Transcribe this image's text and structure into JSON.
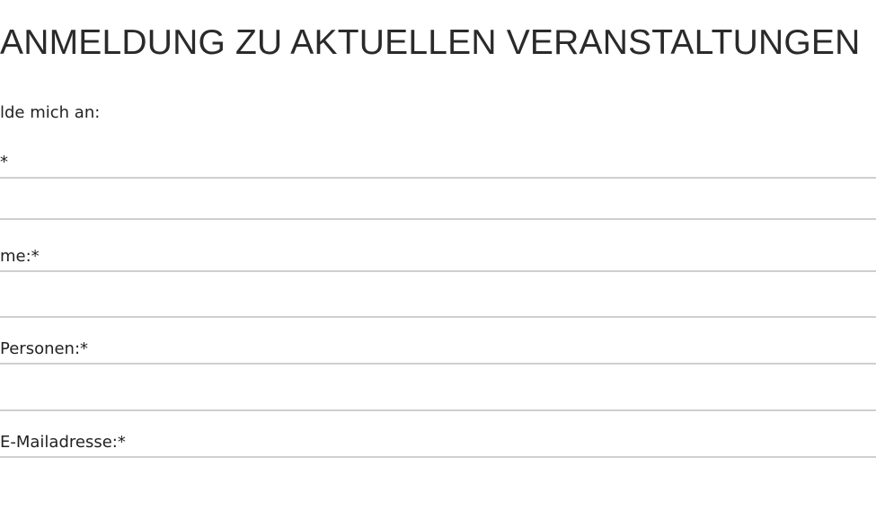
{
  "form": {
    "title": "ANMELDUNG ZU AKTUELLEN VERANSTALTUNGEN",
    "intro": "lde mich an:",
    "fields": [
      {
        "label": "*",
        "value": ""
      },
      {
        "label": "me:*",
        "value": ""
      },
      {
        "label": " Personen:*",
        "value": ""
      },
      {
        "label": "E-Mailadresse:*",
        "value": ""
      }
    ]
  }
}
